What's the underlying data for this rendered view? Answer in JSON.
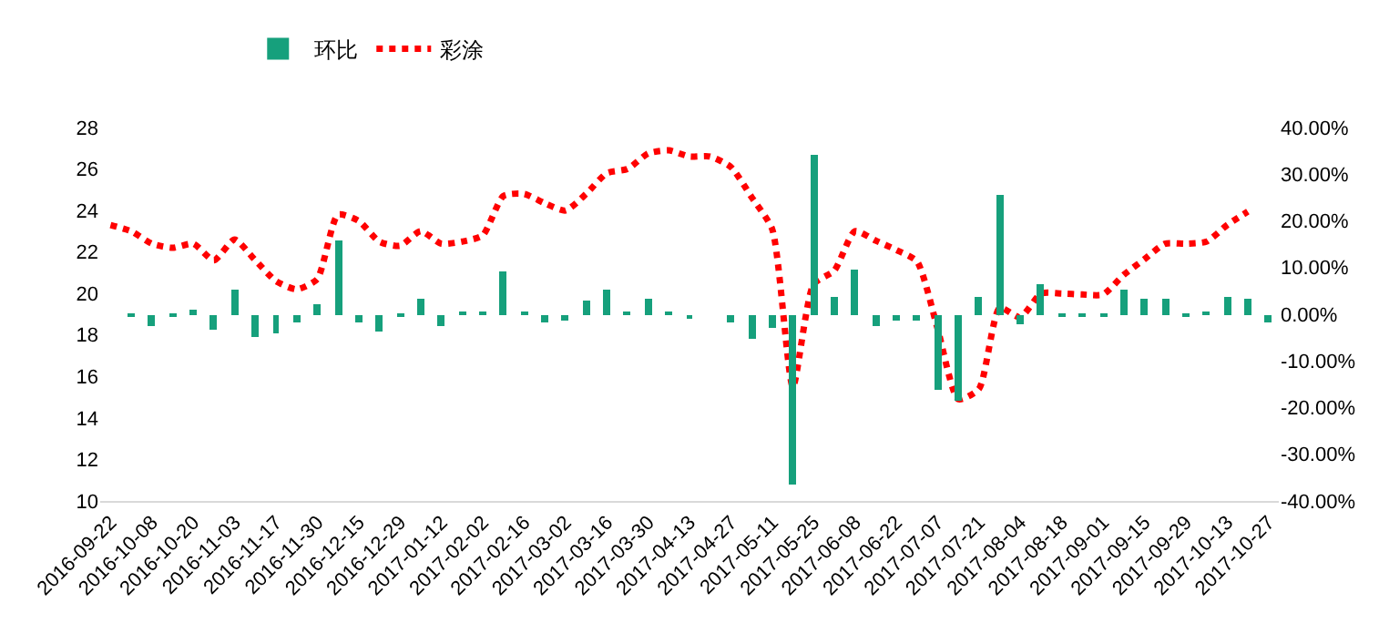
{
  "chart_data": {
    "type": "bar",
    "legend": "top",
    "grid": false,
    "marker": "none",
    "categories": [
      "2016-09-22",
      null,
      "2016-10-08",
      null,
      "2016-10-20",
      null,
      "2016-11-03",
      null,
      "2016-11-17",
      null,
      "2016-11-30",
      null,
      "2016-12-15",
      null,
      "2016-12-29",
      null,
      "2017-01-12",
      null,
      "2017-02-02",
      null,
      "2017-02-16",
      null,
      "2017-03-02",
      null,
      "2017-03-16",
      null,
      "2017-03-30",
      null,
      "2017-04-13",
      null,
      "2017-04-27",
      null,
      "2017-05-11",
      null,
      "2017-05-25",
      null,
      "2017-06-08",
      null,
      "2017-06-22",
      null,
      "2017-07-07",
      null,
      "2017-07-21",
      null,
      "2017-08-04",
      null,
      "2017-08-18",
      null,
      "2017-09-01",
      null,
      "2017-09-15",
      null,
      "2017-09-29",
      null,
      "2017-10-13",
      null,
      "2017-10-27"
    ],
    "ylim": [
      10,
      28
    ],
    "yticks": [
      10,
      12,
      14,
      16,
      18,
      20,
      22,
      24,
      26,
      28
    ],
    "y2lim": [
      -40,
      40
    ],
    "y2ticks": [
      {
        "value": -40,
        "label": "-40.00%"
      },
      {
        "value": -30,
        "label": "-30.00%"
      },
      {
        "value": -20,
        "label": "-20.00%"
      },
      {
        "value": -10,
        "label": "-10.00%"
      },
      {
        "value": 0,
        "label": "0.00%"
      },
      {
        "value": 10,
        "label": "10.00%"
      },
      {
        "value": 20,
        "label": "20.00%"
      },
      {
        "value": 30,
        "label": "30.00%"
      },
      {
        "value": 40,
        "label": "40.00%"
      }
    ],
    "series": [
      {
        "name": "环比",
        "axis": "y2",
        "color": "#16a07c",
        "values": [
          null,
          -0.6,
          -2.4,
          -0.4,
          1.1,
          -3.4,
          5.3,
          -5.0,
          -4.1,
          -1.7,
          2.1,
          16.0,
          -1.7,
          -3.8,
          -0.7,
          3.2,
          -2.7,
          0.6,
          0.6,
          9.2,
          0.6,
          -1.7,
          -1.3,
          2.8,
          5.3,
          0.6,
          3.2,
          0.6,
          -0.8,
          null,
          -1.7,
          -5.2,
          -3.1,
          -36.3,
          34.3,
          3.9,
          9.6,
          -2.7,
          -1.3,
          -1.3,
          -16.3,
          -18.4,
          3.9,
          25.6,
          -2.0,
          6.4,
          -0.2,
          -0.2,
          -0.2,
          5.3,
          3.5,
          3.5,
          -0.2,
          0.7,
          3.9,
          3.2,
          -1.7
        ]
      },
      {
        "name": "彩涂",
        "type": "line",
        "axis": "y",
        "color": "#ff0000",
        "line_style": "dotted",
        "values": [
          23.3,
          23.0,
          22.4,
          22.2,
          22.4,
          21.6,
          22.6,
          21.6,
          20.6,
          20.2,
          20.7,
          23.8,
          23.5,
          22.5,
          22.3,
          23.0,
          22.4,
          22.5,
          22.8,
          24.7,
          24.8,
          24.35,
          24.0,
          24.8,
          25.8,
          26.0,
          26.75,
          26.9,
          26.6,
          26.6,
          26.1,
          24.65,
          23.1,
          15.5,
          20.45,
          21.1,
          23.0,
          22.55,
          22.1,
          21.55,
          18.3,
          14.9,
          15.4,
          19.3,
          18.85,
          20.0,
          20.0,
          19.95,
          19.95,
          20.9,
          21.65,
          22.4,
          22.4,
          22.5,
          23.3,
          23.95,
          null
        ]
      }
    ]
  }
}
